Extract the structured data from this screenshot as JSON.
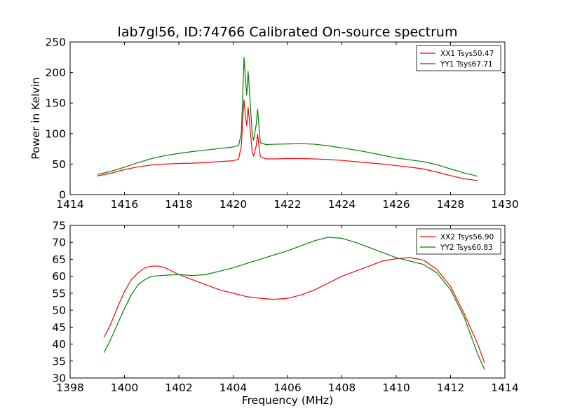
{
  "figure_title": "lab7gl56, ID:74766 Calibrated On-source spectrum",
  "chart_data": [
    {
      "type": "line",
      "title": "lab7gl56, ID:74766 Calibrated On-source spectrum",
      "xlabel": "",
      "ylabel": "Power in Kelvin",
      "xlim": [
        1414,
        1430
      ],
      "ylim": [
        0,
        250
      ],
      "xticks": [
        1414,
        1416,
        1418,
        1420,
        1422,
        1424,
        1426,
        1428,
        1430
      ],
      "yticks": [
        0,
        50,
        100,
        150,
        200,
        250
      ],
      "grid": false,
      "legend_position": "top-right",
      "series": [
        {
          "name": "XX1 Tsys50.47",
          "color": "#ff0000",
          "points": [
            [
              1415.0,
              30.5
            ],
            [
              1415.5,
              35
            ],
            [
              1416.0,
              41
            ],
            [
              1416.5,
              45.5
            ],
            [
              1417.0,
              48.5
            ],
            [
              1417.5,
              50
            ],
            [
              1418.0,
              51
            ],
            [
              1418.5,
              51.5
            ],
            [
              1419.0,
              52.5
            ],
            [
              1419.5,
              54
            ],
            [
              1420.0,
              55.5
            ],
            [
              1420.2,
              58
            ],
            [
              1420.3,
              80
            ],
            [
              1420.35,
              120
            ],
            [
              1420.4,
              155
            ],
            [
              1420.45,
              130
            ],
            [
              1420.5,
              113
            ],
            [
              1420.55,
              143
            ],
            [
              1420.6,
              120
            ],
            [
              1420.7,
              70
            ],
            [
              1420.75,
              63
            ],
            [
              1420.85,
              80
            ],
            [
              1420.9,
              99
            ],
            [
              1420.95,
              80
            ],
            [
              1421.0,
              62
            ],
            [
              1421.2,
              58.5
            ],
            [
              1421.5,
              58.5
            ],
            [
              1422.0,
              59
            ],
            [
              1422.5,
              59
            ],
            [
              1423.0,
              58.5
            ],
            [
              1423.5,
              57.5
            ],
            [
              1424.0,
              56
            ],
            [
              1424.5,
              54
            ],
            [
              1425.0,
              52
            ],
            [
              1425.5,
              50
            ],
            [
              1426.0,
              47.5
            ],
            [
              1426.5,
              45
            ],
            [
              1427.0,
              42
            ],
            [
              1427.5,
              37
            ],
            [
              1428.0,
              31
            ],
            [
              1428.5,
              26
            ],
            [
              1429.0,
              23
            ]
          ]
        },
        {
          "name": "YY1 Tsys67.71",
          "color": "#008000",
          "points": [
            [
              1415.0,
              33
            ],
            [
              1415.5,
              38
            ],
            [
              1416.0,
              45
            ],
            [
              1416.5,
              52.5
            ],
            [
              1417.0,
              59
            ],
            [
              1417.5,
              64
            ],
            [
              1418.0,
              67.5
            ],
            [
              1418.5,
              70.5
            ],
            [
              1419.0,
              73
            ],
            [
              1419.5,
              75.5
            ],
            [
              1420.0,
              78
            ],
            [
              1420.2,
              80.5
            ],
            [
              1420.3,
              100
            ],
            [
              1420.35,
              160
            ],
            [
              1420.4,
              225
            ],
            [
              1420.45,
              190
            ],
            [
              1420.5,
              163
            ],
            [
              1420.55,
              202
            ],
            [
              1420.6,
              170
            ],
            [
              1420.7,
              100
            ],
            [
              1420.75,
              89
            ],
            [
              1420.85,
              115
            ],
            [
              1420.9,
              140
            ],
            [
              1420.95,
              112
            ],
            [
              1421.0,
              85
            ],
            [
              1421.2,
              82
            ],
            [
              1421.5,
              82.5
            ],
            [
              1422.0,
              83
            ],
            [
              1422.5,
              83.5
            ],
            [
              1423.0,
              82.5
            ],
            [
              1423.5,
              80
            ],
            [
              1424.0,
              76.5
            ],
            [
              1424.5,
              73
            ],
            [
              1425.0,
              69
            ],
            [
              1425.5,
              64.5
            ],
            [
              1426.0,
              60
            ],
            [
              1426.5,
              57
            ],
            [
              1427.0,
              54
            ],
            [
              1427.5,
              49
            ],
            [
              1428.0,
              42
            ],
            [
              1428.5,
              35.5
            ],
            [
              1429.0,
              30
            ]
          ]
        }
      ]
    },
    {
      "type": "line",
      "title": "",
      "xlabel": "Frequency (MHz)",
      "ylabel": "",
      "xlim": [
        1398,
        1414
      ],
      "ylim": [
        30,
        75
      ],
      "xticks": [
        1398,
        1400,
        1402,
        1404,
        1406,
        1408,
        1410,
        1412,
        1414
      ],
      "yticks": [
        30,
        35,
        40,
        45,
        50,
        55,
        60,
        65,
        70,
        75
      ],
      "grid": false,
      "legend_position": "top-right",
      "series": [
        {
          "name": "XX2 Tsys56.90",
          "color": "#ff0000",
          "points": [
            [
              1399.25,
              42
            ],
            [
              1399.5,
              46
            ],
            [
              1399.75,
              51
            ],
            [
              1400.0,
              55.5
            ],
            [
              1400.25,
              59
            ],
            [
              1400.5,
              61
            ],
            [
              1400.75,
              62.5
            ],
            [
              1401.0,
              63
            ],
            [
              1401.25,
              63
            ],
            [
              1401.5,
              62.5
            ],
            [
              1401.75,
              61.5
            ],
            [
              1402.0,
              60.5
            ],
            [
              1402.5,
              59
            ],
            [
              1403.0,
              57.5
            ],
            [
              1403.5,
              56
            ],
            [
              1404.0,
              55
            ],
            [
              1404.5,
              54
            ],
            [
              1405.0,
              53.5
            ],
            [
              1405.5,
              53.2
            ],
            [
              1406.0,
              53.5
            ],
            [
              1406.5,
              54.5
            ],
            [
              1407.0,
              56
            ],
            [
              1407.5,
              58
            ],
            [
              1408.0,
              60
            ],
            [
              1408.5,
              61.5
            ],
            [
              1409.0,
              63
            ],
            [
              1409.5,
              64.5
            ],
            [
              1410.0,
              65.2
            ],
            [
              1410.5,
              65.5
            ],
            [
              1411.0,
              64.8
            ],
            [
              1411.5,
              62
            ],
            [
              1412.0,
              57
            ],
            [
              1412.5,
              49
            ],
            [
              1413.0,
              40
            ],
            [
              1413.25,
              34.5
            ]
          ]
        },
        {
          "name": "YY2 Tsys60.83",
          "color": "#008000",
          "points": [
            [
              1399.25,
              37.5
            ],
            [
              1399.5,
              41.5
            ],
            [
              1399.75,
              46
            ],
            [
              1400.0,
              50.5
            ],
            [
              1400.25,
              54.5
            ],
            [
              1400.5,
              57.5
            ],
            [
              1400.75,
              59
            ],
            [
              1401.0,
              60
            ],
            [
              1401.5,
              60.3
            ],
            [
              1402.0,
              60.5
            ],
            [
              1402.5,
              60.2
            ],
            [
              1403.0,
              60.5
            ],
            [
              1403.5,
              61.5
            ],
            [
              1404.0,
              62.5
            ],
            [
              1404.5,
              63.8
            ],
            [
              1405.0,
              65
            ],
            [
              1405.5,
              66.3
            ],
            [
              1406.0,
              67.5
            ],
            [
              1406.5,
              69
            ],
            [
              1407.0,
              70.5
            ],
            [
              1407.5,
              71.5
            ],
            [
              1408.0,
              71.2
            ],
            [
              1408.5,
              70
            ],
            [
              1409.0,
              68.5
            ],
            [
              1409.5,
              67
            ],
            [
              1410.0,
              65.5
            ],
            [
              1410.5,
              64.5
            ],
            [
              1411.0,
              63.5
            ],
            [
              1411.5,
              61
            ],
            [
              1412.0,
              56
            ],
            [
              1412.5,
              48
            ],
            [
              1413.0,
              37
            ],
            [
              1413.25,
              32.5
            ]
          ]
        }
      ]
    }
  ]
}
